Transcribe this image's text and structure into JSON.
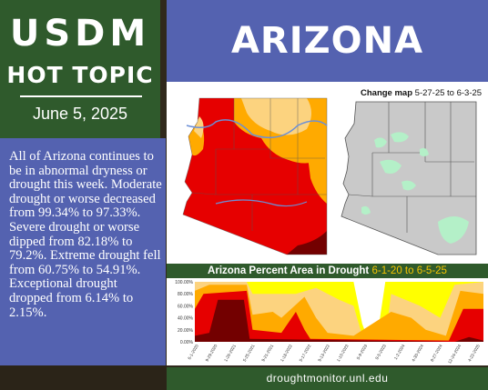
{
  "header": {
    "title": "USDM",
    "subtitle": "HOT TOPIC",
    "date": "June 5, 2025"
  },
  "summary": "All of Arizona continues to be in abnormal dryness or drought this week. Moderate drought or worse decreased from 99.34% to 97.33%. Severe drought or worse dipped from 82.18% to 79.2%. Extreme drought fell from 60.75% to 54.91%. Exceptional drought dropped from 6.14% to 2.15%.",
  "state_title": "ARIZONA",
  "change_map": {
    "label": "Change map",
    "dates": "5-27-25 to 6-3-25"
  },
  "percent_chart": {
    "label": "Arizona Percent Area in Drought",
    "dates": "6-1-20 to 6-5-25",
    "y_ticks": [
      "100.00%",
      "80.00%",
      "60.00%",
      "40.00%",
      "20.00%",
      "0.00%"
    ],
    "x_ticks": [
      "6-1-2020",
      "9-29-2020",
      "1-26-2021",
      "5-25-2021",
      "9-21-2021",
      "1-18-2022",
      "5-17-2022",
      "9-13-2022",
      "1-10-2023",
      "5-9-2023",
      "9-5-2023",
      "1-2-2024",
      "4-30-2024",
      "8-27-2024",
      "12-24-2024",
      "4-22-2025"
    ],
    "colors": {
      "D0": "#ffff00",
      "D1": "#fcd37f",
      "D2": "#ffaa00",
      "D3": "#e60000",
      "D4": "#730000"
    }
  },
  "footer": {
    "url": "droughtmonitor.unl.edu"
  },
  "colors": {
    "green": "#2f5a2c",
    "blue": "#5462b0"
  }
}
